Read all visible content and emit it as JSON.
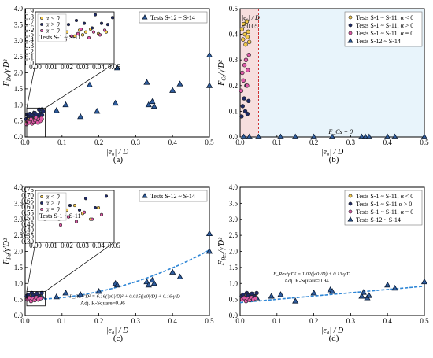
{
  "styles": {
    "tri": "#2f5d9e",
    "triStroke": "#0b1b33",
    "pos": "#f2c84b",
    "neg": "#1f2a66",
    "zero": "#e05aa8",
    "fit": "#2e86d6",
    "shadeL": "#f7dede",
    "shadeR": "#e8f4fb"
  },
  "chart_data": [
    {
      "id": "a",
      "panel_label": "(a)",
      "type": "scatter",
      "xlabel": "|e0| / D",
      "ylabel": "F_Da/γ'D²",
      "xlim": [
        0,
        0.5
      ],
      "ylim": [
        0,
        4
      ],
      "xticks": [
        "0.0",
        "0.1",
        "0.2",
        "0.3",
        "0.4",
        "0.5"
      ],
      "yticks": [
        "0.0",
        "0.5",
        "1.0",
        "1.5",
        "2.0",
        "2.5",
        "3.0",
        "3.5",
        "4.0"
      ],
      "legend": [
        {
          "label": "Tests S-12 ~ S-14",
          "marker": "tri"
        }
      ],
      "series": [
        {
          "name": "Tests S-12 ~ S-14",
          "marker": "tri",
          "x": [
            0.022,
            0.045,
            0.085,
            0.11,
            0.15,
            0.175,
            0.195,
            0.245,
            0.25,
            0.33,
            0.335,
            0.345,
            0.35,
            0.4,
            0.42,
            0.5,
            0.5
          ],
          "y": [
            0.72,
            0.83,
            0.82,
            1.0,
            0.63,
            1.62,
            0.8,
            1.05,
            2.15,
            1.7,
            1.0,
            1.1,
            0.95,
            1.45,
            1.65,
            2.55,
            1.6
          ]
        },
        {
          "name": "α < 0",
          "marker": "pos",
          "x": [
            0.005,
            0.008,
            0.01,
            0.012,
            0.015,
            0.018,
            0.02,
            0.025,
            0.028,
            0.03,
            0.032,
            0.035,
            0.04,
            0.045
          ],
          "y": [
            0.45,
            0.55,
            0.5,
            0.6,
            0.62,
            0.5,
            0.55,
            0.48,
            0.58,
            0.5,
            0.55,
            0.6,
            0.52,
            0.55
          ]
        },
        {
          "name": "α > 0",
          "marker": "neg",
          "x": [
            0.003,
            0.006,
            0.009,
            0.013,
            0.017,
            0.021,
            0.026,
            0.031,
            0.036,
            0.038,
            0.042,
            0.046,
            0.049
          ],
          "y": [
            0.55,
            0.7,
            0.65,
            0.72,
            0.6,
            0.68,
            0.75,
            0.7,
            0.62,
            0.85,
            0.7,
            0.68,
            0.8
          ]
        },
        {
          "name": "α = 0",
          "marker": "zero",
          "x": [
            0.004,
            0.007,
            0.011,
            0.016,
            0.019,
            0.023,
            0.027,
            0.029,
            0.034,
            0.037,
            0.041,
            0.044
          ],
          "y": [
            0.4,
            0.5,
            0.45,
            0.55,
            0.42,
            0.48,
            0.52,
            0.6,
            0.45,
            0.55,
            0.5,
            0.58
          ]
        }
      ],
      "inset": {
        "xlim": [
          0,
          0.05
        ],
        "ylim": [
          0,
          0.9
        ],
        "xticks": [
          "0.00",
          "0.01",
          "0.02",
          "0.03",
          "0.04",
          "0.05"
        ],
        "yticks": [
          "0.0",
          "0.1",
          "0.2",
          "0.3",
          "0.4",
          "0.5",
          "0.6",
          "0.7",
          "0.8",
          "0.9"
        ],
        "legend": [
          "α < 0",
          "α > 0",
          "α = 0"
        ],
        "legend_title": "Tests S-1 ~ S-11"
      }
    },
    {
      "id": "b",
      "panel_label": "(b)",
      "type": "scatter",
      "xlabel": "|e0| / D",
      "ylabel": "F_Cs/γ'D²",
      "xlim": [
        0,
        0.5
      ],
      "ylim": [
        0,
        0.5
      ],
      "xticks": [
        "0.0",
        "0.1",
        "0.2",
        "0.3",
        "0.4",
        "0.5"
      ],
      "yticks": [
        "0.0",
        "0.1",
        "0.2",
        "0.3",
        "0.4",
        "0.5"
      ],
      "annotations": [
        "|e0| / D",
        "< 0.05",
        "F_Cs = 0"
      ],
      "legend": [
        {
          "label": "Tests S-1 ~ S-11, α < 0",
          "marker": "pos"
        },
        {
          "label": "Tests S-1 ~ S-11, α > 0",
          "marker": "neg"
        },
        {
          "label": "Tests S-1 ~ S-11, α = 0",
          "marker": "zero"
        },
        {
          "label": "Tests S-12 ~ S-14",
          "marker": "tri"
        }
      ],
      "series": [
        {
          "name": "α < 0",
          "marker": "pos",
          "x": [
            0.005,
            0.008,
            0.01,
            0.013,
            0.015,
            0.018,
            0.02,
            0.022,
            0.025
          ],
          "y": [
            0.42,
            0.38,
            0.44,
            0.4,
            0.36,
            0.45,
            0.39,
            0.41,
            0.37
          ]
        },
        {
          "name": "α > 0",
          "marker": "neg",
          "x": [
            0.004,
            0.007,
            0.011,
            0.014,
            0.017,
            0.02,
            0.023
          ],
          "y": [
            0.08,
            0.12,
            0.15,
            0.1,
            0.2,
            0.09,
            0.14
          ]
        },
        {
          "name": "α = 0",
          "marker": "zero",
          "x": [
            0.003,
            0.006,
            0.009,
            0.012,
            0.016,
            0.019,
            0.021,
            0.024
          ],
          "y": [
            0.18,
            0.25,
            0.22,
            0.28,
            0.3,
            0.2,
            0.26,
            0.32
          ]
        },
        {
          "name": "Tests S-12 ~ S-14",
          "marker": "tri",
          "x": [
            0.01,
            0.025,
            0.05,
            0.11,
            0.15,
            0.2,
            0.25,
            0.33,
            0.34,
            0.35,
            0.4,
            0.42,
            0.5
          ],
          "y": [
            0,
            0,
            0,
            0,
            0,
            0,
            0,
            0,
            0,
            0,
            0,
            0,
            0
          ]
        }
      ],
      "hline": 0,
      "shade_split": 0.05
    },
    {
      "id": "c",
      "panel_label": "(c)",
      "type": "scatter",
      "xlabel": "|e0| / D",
      "ylabel": "F_Rd/γ'D²",
      "xlim": [
        0,
        0.5
      ],
      "ylim": [
        0,
        4
      ],
      "xticks": [
        "0.0",
        "0.1",
        "0.2",
        "0.3",
        "0.4",
        "0.5"
      ],
      "yticks": [
        "0.0",
        "0.5",
        "1.0",
        "1.5",
        "2.0",
        "2.5",
        "3.0",
        "3.5",
        "4.0"
      ],
      "legend": [
        {
          "label": "Tests S-12 ~ S-14",
          "marker": "tri"
        }
      ],
      "fit": {
        "a": 6.16,
        "b": 0.015,
        "c": 0.16,
        "equation": "F_Rd/γ'D² = 6.16(|e0|/D)² + 0.015(|e0|/D) + 0.16·γ'D",
        "r2": "Adj. R-Square=0.96"
      },
      "series": [
        {
          "name": "Tests S-12 ~ S-14",
          "marker": "tri",
          "x": [
            0.02,
            0.045,
            0.085,
            0.11,
            0.15,
            0.2,
            0.245,
            0.25,
            0.33,
            0.335,
            0.345,
            0.35,
            0.4,
            0.42,
            0.5,
            0.5
          ],
          "y": [
            0.55,
            0.6,
            0.58,
            0.7,
            0.65,
            0.75,
            1.0,
            0.95,
            1.05,
            0.95,
            1.1,
            1.0,
            1.35,
            1.2,
            2.55,
            2.0
          ]
        },
        {
          "name": "α < 0",
          "marker": "pos",
          "x": [
            0.005,
            0.01,
            0.015,
            0.02,
            0.025,
            0.03,
            0.035,
            0.04
          ],
          "y": [
            0.55,
            0.6,
            0.5,
            0.58,
            0.62,
            0.55,
            0.5,
            0.6
          ]
        },
        {
          "name": "α > 0",
          "marker": "neg",
          "x": [
            0.004,
            0.008,
            0.012,
            0.018,
            0.022,
            0.028,
            0.032,
            0.038,
            0.045
          ],
          "y": [
            0.6,
            0.65,
            0.55,
            0.7,
            0.62,
            0.58,
            0.68,
            0.6,
            0.7
          ]
        },
        {
          "name": "α = 0",
          "marker": "zero",
          "x": [
            0.006,
            0.011,
            0.016,
            0.021,
            0.026,
            0.031,
            0.036,
            0.042
          ],
          "y": [
            0.5,
            0.55,
            0.45,
            0.52,
            0.48,
            0.56,
            0.5,
            0.54
          ]
        }
      ],
      "inset": {
        "xlim": [
          0,
          0.05
        ],
        "ylim": [
          0.3,
          0.75
        ],
        "xticks": [
          "0.00",
          "0.01",
          "0.02",
          "0.03",
          "0.04",
          "0.05"
        ],
        "yticks": [
          "0.30",
          "0.35",
          "0.40",
          "0.45",
          "0.50",
          "0.55",
          "0.60",
          "0.65",
          "0.70",
          "0.75"
        ],
        "legend": [
          "α < 0",
          "α > 0",
          "α = 0"
        ],
        "legend_title": "Tests S-1 ~ S-11"
      }
    },
    {
      "id": "d",
      "panel_label": "(d)",
      "type": "scatter",
      "xlabel": "|e0| / D",
      "ylabel": "F_Res/γ'D²",
      "xlim": [
        0,
        0.5
      ],
      "ylim": [
        0,
        4
      ],
      "xticks": [
        "0.0",
        "0.1",
        "0.2",
        "0.3",
        "0.4",
        "0.5"
      ],
      "yticks": [
        "0.0",
        "0.5",
        "1.0",
        "1.5",
        "2.0",
        "2.5",
        "3.0",
        "3.5",
        "4.0"
      ],
      "legend": [
        {
          "label": "Tests S-1 ~ S-11, α < 0",
          "marker": "pos"
        },
        {
          "label": "Tests S-1 ~ S-11 α > 0",
          "marker": "neg"
        },
        {
          "label": "Tests S-1 ~ S-11, α = 0",
          "marker": "zero"
        },
        {
          "label": "Tests S-12 ~ S-14",
          "marker": "tri"
        }
      ],
      "fit": {
        "a": 0,
        "b": 1.02,
        "c": 0.13,
        "equation": "F_Res/γ'D² = 1.02(|e0|/D) + 0.13·γ'D",
        "r2": "Adj. R-Square=0.94"
      },
      "series": [
        {
          "name": "Tests S-12 ~ S-14",
          "marker": "tri",
          "x": [
            0.02,
            0.045,
            0.085,
            0.11,
            0.15,
            0.2,
            0.245,
            0.25,
            0.33,
            0.335,
            0.345,
            0.35,
            0.4,
            0.42,
            0.5
          ],
          "y": [
            0.5,
            0.55,
            0.6,
            0.65,
            0.45,
            0.7,
            0.8,
            0.75,
            0.6,
            0.72,
            0.55,
            0.62,
            0.95,
            0.85,
            1.05
          ]
        },
        {
          "name": "α < 0",
          "marker": "pos",
          "x": [
            0.005,
            0.01,
            0.015,
            0.02,
            0.025,
            0.03,
            0.035,
            0.04
          ],
          "y": [
            0.55,
            0.6,
            0.5,
            0.58,
            0.62,
            0.55,
            0.5,
            0.6
          ]
        },
        {
          "name": "α > 0",
          "marker": "neg",
          "x": [
            0.004,
            0.008,
            0.012,
            0.018,
            0.022,
            0.028,
            0.032,
            0.038,
            0.045
          ],
          "y": [
            0.6,
            0.65,
            0.55,
            0.7,
            0.62,
            0.58,
            0.68,
            0.6,
            0.7
          ]
        },
        {
          "name": "α = 0",
          "marker": "zero",
          "x": [
            0.006,
            0.011,
            0.016,
            0.021,
            0.026,
            0.031,
            0.036,
            0.042
          ],
          "y": [
            0.5,
            0.55,
            0.45,
            0.52,
            0.48,
            0.56,
            0.5,
            0.54
          ]
        }
      ]
    }
  ]
}
